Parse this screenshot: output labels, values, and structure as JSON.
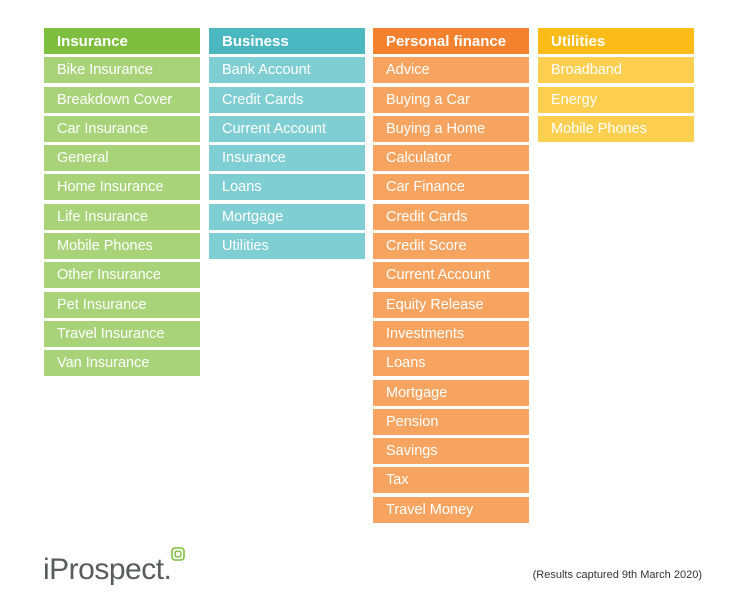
{
  "columns": [
    {
      "title": "Insurance",
      "items": [
        "Bike Insurance",
        "Breakdown Cover",
        "Car Insurance",
        "General",
        "Home Insurance",
        "Life Insurance",
        "Mobile Phones",
        "Other Insurance",
        "Pet Insurance",
        "Travel Insurance",
        "Van Insurance"
      ]
    },
    {
      "title": "Business",
      "items": [
        "Bank Account",
        "Credit Cards",
        "Current Account",
        "Insurance",
        "Loans",
        "Mortgage",
        "Utilities"
      ]
    },
    {
      "title": "Personal finance",
      "items": [
        "Advice",
        "Buying a Car",
        "Buying a Home",
        "Calculator",
        "Car Finance",
        "Credit Cards",
        "Credit Score",
        "Current Account",
        "Equity Release",
        "Investments",
        "Loans",
        "Mortgage",
        "Pension",
        "Savings",
        "Tax",
        "Travel Money"
      ]
    },
    {
      "title": "Utilities",
      "items": [
        "Broadband",
        "Energy",
        "Mobile Phones"
      ]
    }
  ],
  "colors": {
    "insurance": "#7fbf3f",
    "business": "#4bb7c1",
    "personal_finance": "#f3812e",
    "utilities": "#fbbc1a"
  },
  "logo": {
    "text": "iProspect.",
    "mark": "logo-mark-icon"
  },
  "footnote": "(Results captured 9th March 2020)"
}
